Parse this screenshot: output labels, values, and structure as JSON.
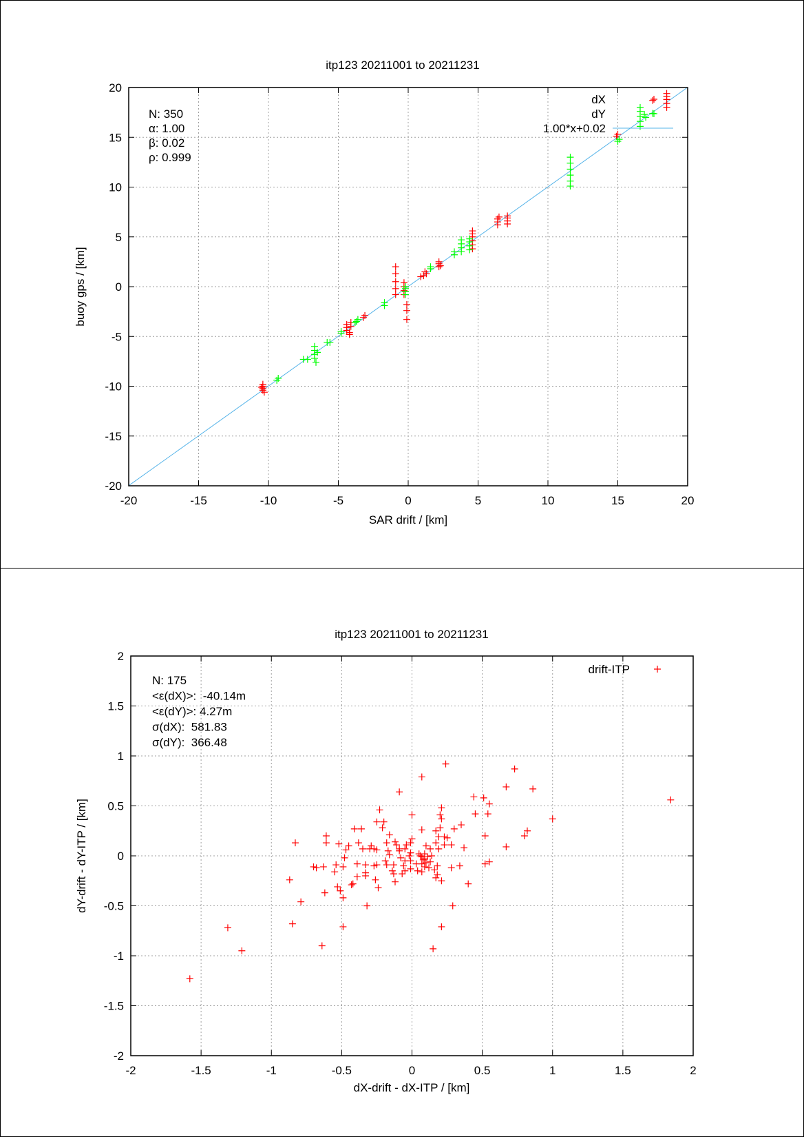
{
  "colors": {
    "dX": "#ff0000",
    "dY": "#00ff00",
    "fit": "#56b4e9",
    "grid": "#a0a0a0"
  },
  "chart_data": [
    {
      "type": "scatter",
      "title": "itp123 20211001 to 20211231",
      "xlabel": "SAR drift / [km]",
      "ylabel": "buoy gps / [km]",
      "xlim": [
        -20,
        20
      ],
      "ylim": [
        -20,
        20
      ],
      "xticks": [
        -20,
        -15,
        -10,
        -5,
        0,
        5,
        10,
        15,
        20
      ],
      "yticks": [
        -20,
        -15,
        -10,
        -5,
        0,
        5,
        10,
        15,
        20
      ],
      "grid": true,
      "legend_position": "top-right",
      "stats": [
        "N: 350",
        "α: 1.00",
        "β: 0.02",
        "ρ: 0.999"
      ],
      "fit": {
        "label": "1.00*x+0.02",
        "slope": 1.0,
        "intercept": 0.02
      },
      "series": [
        {
          "name": "dX",
          "marker": "+",
          "points": [
            [
              -10.4,
              -9.8
            ],
            [
              -10.4,
              -10.0
            ],
            [
              -10.4,
              -10.2
            ],
            [
              -10.4,
              -10.4
            ],
            [
              -10.3,
              -10.6
            ],
            [
              -10.5,
              -10.1
            ],
            [
              -4.4,
              -3.8
            ],
            [
              -4.4,
              -4.1
            ],
            [
              -4.4,
              -4.4
            ],
            [
              -4.2,
              -4.6
            ],
            [
              -4.2,
              -4.8
            ],
            [
              -4.1,
              -3.6
            ],
            [
              -4.1,
              -4.0
            ],
            [
              -3.1,
              -2.9
            ],
            [
              -3.2,
              -3.1
            ],
            [
              -0.9,
              2.0
            ],
            [
              -0.9,
              1.3
            ],
            [
              -0.9,
              0.5
            ],
            [
              -0.9,
              -0.2
            ],
            [
              -0.9,
              -0.8
            ],
            [
              -0.3,
              0.4
            ],
            [
              -0.3,
              0.0
            ],
            [
              -0.3,
              -0.4
            ],
            [
              -0.3,
              -0.8
            ],
            [
              -0.1,
              -1.8
            ],
            [
              -0.1,
              -2.4
            ],
            [
              -0.1,
              -3.3
            ],
            [
              0.9,
              1.0
            ],
            [
              1.1,
              1.1
            ],
            [
              1.3,
              1.3
            ],
            [
              1.2,
              1.5
            ],
            [
              2.2,
              2.5
            ],
            [
              2.2,
              2.3
            ],
            [
              2.3,
              2.1
            ],
            [
              2.2,
              2.0
            ],
            [
              4.6,
              3.8
            ],
            [
              4.6,
              4.2
            ],
            [
              4.6,
              4.6
            ],
            [
              4.6,
              5.0
            ],
            [
              4.6,
              5.3
            ],
            [
              4.6,
              5.6
            ],
            [
              6.4,
              6.2
            ],
            [
              6.4,
              6.5
            ],
            [
              6.4,
              6.8
            ],
            [
              6.5,
              7.0
            ],
            [
              7.1,
              6.3
            ],
            [
              7.1,
              6.6
            ],
            [
              7.1,
              6.9
            ],
            [
              7.1,
              7.1
            ],
            [
              14.9,
              15.1
            ],
            [
              15.0,
              15.3
            ],
            [
              17.5,
              18.7
            ],
            [
              18.5,
              18.0
            ],
            [
              18.5,
              18.4
            ],
            [
              18.5,
              18.8
            ],
            [
              18.5,
              19.1
            ],
            [
              18.5,
              19.4
            ]
          ]
        },
        {
          "name": "dY",
          "marker": "+",
          "points": [
            [
              -9.3,
              -9.2
            ],
            [
              -9.4,
              -9.4
            ],
            [
              -7.5,
              -7.3
            ],
            [
              -7.2,
              -7.3
            ],
            [
              -6.7,
              -6.0
            ],
            [
              -6.7,
              -6.4
            ],
            [
              -6.7,
              -6.8
            ],
            [
              -6.7,
              -7.2
            ],
            [
              -6.6,
              -7.6
            ],
            [
              -6.5,
              -6.6
            ],
            [
              -5.8,
              -5.6
            ],
            [
              -5.6,
              -5.6
            ],
            [
              -4.8,
              -4.7
            ],
            [
              -4.8,
              -4.5
            ],
            [
              -3.7,
              -3.5
            ],
            [
              -3.6,
              -3.3
            ],
            [
              -3.8,
              -3.6
            ],
            [
              -1.7,
              -1.6
            ],
            [
              -1.7,
              -1.9
            ],
            [
              -0.2,
              0.0
            ],
            [
              -0.2,
              -0.2
            ],
            [
              -0.2,
              -0.5
            ],
            [
              -0.2,
              -0.8
            ],
            [
              1.6,
              2.0
            ],
            [
              1.6,
              1.8
            ],
            [
              3.3,
              3.2
            ],
            [
              3.3,
              3.5
            ],
            [
              3.8,
              3.5
            ],
            [
              3.8,
              3.9
            ],
            [
              3.8,
              4.3
            ],
            [
              3.8,
              4.7
            ],
            [
              4.4,
              3.7
            ],
            [
              4.4,
              4.1
            ],
            [
              4.4,
              4.5
            ],
            [
              4.4,
              4.8
            ],
            [
              11.6,
              10.1
            ],
            [
              11.6,
              10.6
            ],
            [
              11.6,
              11.2
            ],
            [
              11.6,
              11.8
            ],
            [
              11.6,
              12.4
            ],
            [
              11.6,
              13.0
            ],
            [
              15.0,
              14.6
            ],
            [
              15.1,
              14.8
            ],
            [
              16.6,
              16.1
            ],
            [
              16.6,
              16.6
            ],
            [
              16.6,
              17.1
            ],
            [
              16.6,
              17.6
            ],
            [
              16.6,
              18.0
            ],
            [
              17.0,
              17.0
            ],
            [
              16.9,
              17.3
            ],
            [
              17.5,
              17.4
            ]
          ]
        }
      ]
    },
    {
      "type": "scatter",
      "title": "itp123 20211001 to 20211231",
      "xlabel": "dX-drift - dX-ITP / [km]",
      "ylabel": "dY-drift - dY-ITP / [km]",
      "xlim": [
        -2,
        2
      ],
      "ylim": [
        -2,
        2
      ],
      "xticks": [
        -2,
        -1.5,
        -1,
        -0.5,
        0,
        0.5,
        1,
        1.5,
        2
      ],
      "yticks": [
        -2,
        -1.5,
        -1,
        -0.5,
        0,
        0.5,
        1,
        1.5,
        2
      ],
      "grid": true,
      "legend_position": "top-right",
      "stats": [
        "N: 175",
        "<ε(dX)>:  -40.14m",
        "<ε(dY)>: 4.27m",
        "σ(dX):  581.83",
        "σ(dY):  366.48"
      ],
      "series": [
        {
          "name": "drift-ITP",
          "marker": "+",
          "points": [
            [
              -1.58,
              -1.23
            ],
            [
              -1.31,
              -0.72
            ],
            [
              -1.21,
              -0.95
            ],
            [
              -0.87,
              -0.24
            ],
            [
              -0.83,
              0.13
            ],
            [
              -0.85,
              -0.68
            ],
            [
              -0.79,
              -0.46
            ],
            [
              -0.64,
              -0.9
            ],
            [
              -0.49,
              -0.71
            ],
            [
              -0.32,
              -0.5
            ],
            [
              -0.09,
              0.64
            ],
            [
              0.07,
              0.79
            ],
            [
              0.24,
              0.92
            ],
            [
              0.73,
              0.87
            ],
            [
              0.67,
              0.69
            ],
            [
              0.86,
              0.67
            ],
            [
              1.84,
              0.56
            ],
            [
              1.0,
              0.37
            ],
            [
              0.44,
              0.59
            ],
            [
              0.51,
              0.58
            ],
            [
              0.55,
              0.52
            ],
            [
              0.45,
              0.42
            ],
            [
              0.54,
              0.42
            ],
            [
              0.82,
              0.25
            ],
            [
              0.8,
              0.2
            ],
            [
              0.67,
              0.09
            ],
            [
              0.52,
              0.2
            ],
            [
              0.52,
              -0.08
            ],
            [
              0.55,
              -0.06
            ],
            [
              0.4,
              -0.28
            ],
            [
              0.29,
              -0.5
            ],
            [
              0.21,
              -0.71
            ],
            [
              0.15,
              -0.93
            ],
            [
              0.21,
              -0.25
            ],
            [
              0.28,
              -0.12
            ],
            [
              0.34,
              -0.1
            ],
            [
              0.37,
              0.08
            ],
            [
              0.35,
              0.31
            ],
            [
              0.3,
              0.27
            ],
            [
              0.21,
              0.48
            ],
            [
              0.2,
              0.41
            ],
            [
              0.21,
              0.37
            ],
            [
              0.2,
              0.28
            ],
            [
              0.17,
              0.25
            ],
            [
              0.07,
              0.26
            ],
            [
              0.0,
              0.41
            ],
            [
              -0.23,
              0.46
            ],
            [
              -0.25,
              0.34
            ],
            [
              -0.2,
              0.34
            ],
            [
              -0.21,
              0.28
            ],
            [
              -0.41,
              0.27
            ],
            [
              -0.36,
              0.27
            ],
            [
              -0.61,
              0.2
            ],
            [
              -0.61,
              0.13
            ],
            [
              -0.52,
              0.12
            ],
            [
              -0.48,
              -0.02
            ],
            [
              -0.47,
              0.06
            ],
            [
              -0.45,
              0.1
            ],
            [
              -0.38,
              0.13
            ],
            [
              -0.35,
              0.07
            ],
            [
              -0.54,
              -0.09
            ],
            [
              -0.55,
              -0.16
            ],
            [
              -0.63,
              -0.11
            ],
            [
              -0.7,
              -0.11
            ],
            [
              -0.68,
              -0.12
            ],
            [
              -0.49,
              -0.11
            ],
            [
              -0.39,
              -0.08
            ],
            [
              -0.33,
              -0.09
            ],
            [
              -0.33,
              -0.17
            ],
            [
              -0.33,
              -0.2
            ],
            [
              -0.39,
              -0.21
            ],
            [
              -0.42,
              -0.28
            ],
            [
              -0.43,
              -0.29
            ],
            [
              -0.53,
              -0.31
            ],
            [
              -0.51,
              -0.35
            ],
            [
              -0.62,
              -0.37
            ],
            [
              -0.49,
              -0.42
            ],
            [
              -0.26,
              -0.24
            ],
            [
              -0.24,
              -0.32
            ],
            [
              -0.27,
              -0.1
            ],
            [
              -0.25,
              -0.09
            ],
            [
              -0.19,
              -0.05
            ],
            [
              -0.18,
              -0.09
            ],
            [
              -0.14,
              -0.15
            ],
            [
              -0.13,
              -0.18
            ],
            [
              -0.12,
              -0.26
            ],
            [
              -0.13,
              -0.09
            ],
            [
              -0.07,
              -0.18
            ],
            [
              -0.05,
              -0.15
            ],
            [
              -0.06,
              -0.1
            ],
            [
              -0.05,
              -0.05
            ],
            [
              -0.01,
              -0.05
            ],
            [
              -0.01,
              -0.13
            ],
            [
              0.04,
              -0.15
            ],
            [
              0.07,
              -0.16
            ],
            [
              0.09,
              -0.11
            ],
            [
              0.07,
              -0.08
            ],
            [
              0.09,
              -0.03
            ],
            [
              0.07,
              -0.01
            ],
            [
              0.05,
              0.02
            ],
            [
              0.11,
              -0.01
            ],
            [
              0.14,
              0.0
            ],
            [
              0.13,
              -0.06
            ],
            [
              0.16,
              -0.14
            ],
            [
              0.17,
              -0.22
            ],
            [
              0.18,
              -0.19
            ],
            [
              0.18,
              -0.1
            ],
            [
              0.19,
              0.07
            ],
            [
              0.17,
              0.13
            ],
            [
              0.23,
              0.11
            ],
            [
              0.28,
              0.11
            ],
            [
              0.23,
              0.19
            ],
            [
              0.25,
              0.18
            ],
            [
              0.19,
              0.19
            ],
            [
              0.1,
              0.1
            ],
            [
              0.13,
              0.07
            ],
            [
              0.0,
              0.17
            ],
            [
              -0.01,
              0.13
            ],
            [
              -0.04,
              0.11
            ],
            [
              -0.05,
              0.07
            ],
            [
              -0.01,
              0.03
            ],
            [
              -0.09,
              0.05
            ],
            [
              -0.09,
              0.07
            ],
            [
              -0.11,
              0.11
            ],
            [
              -0.12,
              0.14
            ],
            [
              -0.16,
              0.21
            ],
            [
              -0.18,
              0.13
            ],
            [
              -0.16,
              0.01
            ],
            [
              -0.17,
              0.05
            ],
            [
              -0.29,
              0.1
            ],
            [
              -0.27,
              0.07
            ],
            [
              -0.25,
              0.06
            ],
            [
              -0.3,
              0.07
            ],
            [
              0.08,
              -0.04
            ],
            [
              0.1,
              -0.07
            ],
            [
              0.12,
              -0.12
            ],
            [
              0.06,
              0.0
            ],
            [
              0.03,
              -0.08
            ],
            [
              -0.02,
              0.0
            ],
            [
              0.09,
              0.02
            ],
            [
              -0.08,
              -0.02
            ]
          ]
        }
      ]
    }
  ]
}
